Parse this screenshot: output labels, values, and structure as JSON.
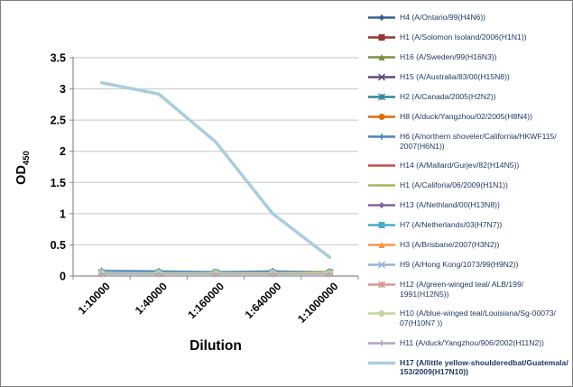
{
  "figure": {
    "background": "#ffffff",
    "border_color": "#7f7f7f"
  },
  "style": {
    "grid_color": "#c6c6c6",
    "axis_color": "#8c8c8c",
    "tick_text_color": "#000000",
    "legend_text_color": "#1f3864"
  },
  "chart_data": {
    "type": "line",
    "title": "",
    "xlabel": "Dilution",
    "ylabel": "OD",
    "ylabel_subscript": "450",
    "x_categories": [
      "1:10000",
      "1:40000",
      "1:160000",
      "1:640000",
      "1:1000000"
    ],
    "ylim": [
      0,
      3.5
    ],
    "ytick_step": 0.5,
    "ytick_labels": [
      "0",
      "0.5",
      "1",
      "1.5",
      "2",
      "2.5",
      "3",
      "3.5"
    ],
    "grid": true,
    "legend_position": "right",
    "series": [
      {
        "label": "H4 (A/Ontario/99(H4N6))",
        "color": "#376092",
        "marker": "diamond",
        "line_width": 1.6,
        "bold": false,
        "values": [
          0.06,
          0.06,
          0.06,
          0.06,
          0.06
        ]
      },
      {
        "label": "H1 (A/Solomon Isoland/2006(H1N1))",
        "color": "#953734",
        "marker": "square",
        "line_width": 1.6,
        "bold": false,
        "values": [
          0.05,
          0.05,
          0.05,
          0.05,
          0.05
        ]
      },
      {
        "label": "H16 (A/Sweden/99(H16N3))",
        "color": "#76923c",
        "marker": "triangle",
        "line_width": 1.6,
        "bold": false,
        "values": [
          0.05,
          0.05,
          0.05,
          0.05,
          0.06
        ]
      },
      {
        "label": "H15 (A/Australia/83/00(H15N8))",
        "color": "#5f497a",
        "marker": "x",
        "line_width": 1.6,
        "bold": false,
        "values": [
          0.05,
          0.05,
          0.05,
          0.05,
          0.05
        ]
      },
      {
        "label": "H2 (A/Canada/2005(H2N2))",
        "color": "#31849b",
        "marker": "asterisk",
        "line_width": 1.6,
        "bold": false,
        "values": [
          0.05,
          0.05,
          0.05,
          0.05,
          0.05
        ]
      },
      {
        "label": "H8 (A/duck/Yangzhou/02/2005(H8N4))",
        "color": "#e36c09",
        "marker": "circle",
        "line_width": 1.6,
        "bold": false,
        "values": [
          0.04,
          0.05,
          0.05,
          0.05,
          0.07
        ]
      },
      {
        "label": "H6 (A/northern shoveler/California/HKWF115/2007(H6N1))",
        "color": "#4f81bd",
        "marker": "plus",
        "line_width": 1.6,
        "bold": false,
        "values": [
          0.09,
          0.08,
          0.07,
          0.08,
          0.07
        ]
      },
      {
        "label": "H14 (A/Mallard/Gurjev/82(H14N5))",
        "color": "#c0504d",
        "marker": "none",
        "line_width": 1.6,
        "bold": false,
        "values": [
          0.05,
          0.05,
          0.05,
          0.05,
          0.05
        ]
      },
      {
        "label": "H1 (A/Califoria/06/2009(H1N1))",
        "color": "#9bbb59",
        "marker": "none",
        "line_width": 1.6,
        "bold": false,
        "values": [
          0.05,
          0.05,
          0.05,
          0.06,
          0.07
        ]
      },
      {
        "label": "H13 (A/Nethland/00(H13N8))",
        "color": "#8064a2",
        "marker": "diamond",
        "line_width": 1.6,
        "bold": false,
        "values": [
          0.05,
          0.05,
          0.05,
          0.05,
          0.05
        ]
      },
      {
        "label": "H7 (A/Netherlands/03(H7N7))",
        "color": "#4bacc6",
        "marker": "square",
        "line_width": 1.6,
        "bold": false,
        "values": [
          0.06,
          0.06,
          0.06,
          0.06,
          0.06
        ]
      },
      {
        "label": "H3 (A/Brisbane/2007(H3N2))",
        "color": "#f79646",
        "marker": "triangle",
        "line_width": 1.6,
        "bold": false,
        "values": [
          0.04,
          0.04,
          0.05,
          0.05,
          0.06
        ]
      },
      {
        "label": "H9 (A/Hong Kong/1073/99(H9N2))",
        "color": "#95b3d7",
        "marker": "x",
        "line_width": 1.6,
        "bold": false,
        "values": [
          0.04,
          0.04,
          0.04,
          0.04,
          0.04
        ]
      },
      {
        "label": "H12 (A/green-winged teal/ ALB/199/1991(H12N5))",
        "color": "#d99694",
        "marker": "asterisk",
        "line_width": 1.6,
        "bold": false,
        "values": [
          0.04,
          0.04,
          0.04,
          0.04,
          0.04
        ]
      },
      {
        "label": "H10 (A/blue-winged teal/Louisiana/Sg-00073/07(H10N7 ))",
        "color": "#c3d69b",
        "marker": "circle",
        "line_width": 1.6,
        "bold": false,
        "values": [
          0.05,
          0.05,
          0.05,
          0.05,
          0.05
        ]
      },
      {
        "label": "H11 (A/duck/Yangzhou/906/2002(H11N2))",
        "color": "#b3a2c7",
        "marker": "plus",
        "line_width": 1.6,
        "bold": false,
        "values": [
          0.03,
          0.03,
          0.03,
          0.03,
          0.03
        ]
      },
      {
        "label": "H17 (A/little yellow-shoulderedbat/Guatemala/153/2009(H17N10))",
        "color": "#a9cdde",
        "marker": "none",
        "line_width": 3.5,
        "bold": true,
        "values": [
          3.1,
          2.92,
          2.15,
          1.0,
          0.3
        ]
      }
    ]
  }
}
